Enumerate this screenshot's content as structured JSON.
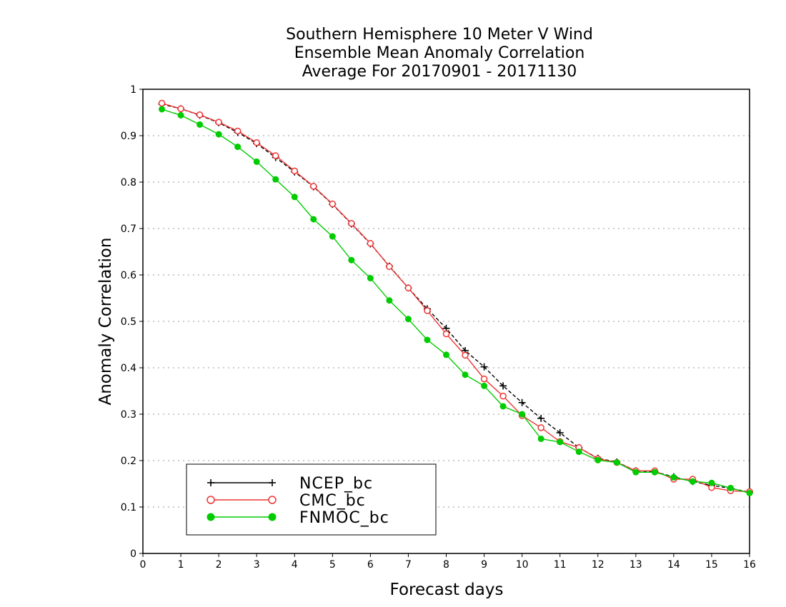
{
  "chart_data": {
    "type": "line",
    "title": [
      "Southern Hemisphere 10 Meter V Wind",
      "Ensemble Mean Anomaly Correlation",
      "Average For 20170901 - 20171130"
    ],
    "xlabel": "Forecast days",
    "ylabel": "Anomaly Correlation",
    "xlim": [
      0,
      16
    ],
    "ylim": [
      0,
      1
    ],
    "xticks": [
      "0",
      "1",
      "2",
      "3",
      "4",
      "5",
      "6",
      "7",
      "8",
      "9",
      "10",
      "11",
      "12",
      "13",
      "14",
      "15",
      "16"
    ],
    "yticks": [
      "0",
      "0.1",
      "0.2",
      "0.3",
      "0.4",
      "0.5",
      "0.6",
      "0.7",
      "0.8",
      "0.9",
      "1"
    ],
    "grid": "horizontal dotted",
    "legend_position": "bottom-left",
    "x": [
      0.5,
      1,
      1.5,
      2,
      2.5,
      3,
      3.5,
      4,
      4.5,
      5,
      5.5,
      6,
      6.5,
      7,
      7.5,
      8,
      8.5,
      9,
      9.5,
      10,
      10.5,
      11,
      11.5,
      12,
      12.5,
      13,
      13.5,
      14,
      14.5,
      15,
      15.5,
      16
    ],
    "series": [
      {
        "name": "NCEP_bc",
        "color": "#000000",
        "marker": "plus",
        "dashed": true,
        "values": [
          0.968,
          0.958,
          0.944,
          0.928,
          0.907,
          0.883,
          0.853,
          0.822,
          0.79,
          0.752,
          0.71,
          0.667,
          0.619,
          0.572,
          0.527,
          0.485,
          0.437,
          0.402,
          0.361,
          0.325,
          0.291,
          0.26,
          0.228,
          0.205,
          0.197,
          0.178,
          0.176,
          0.165,
          0.155,
          0.147,
          0.14,
          0.132
        ]
      },
      {
        "name": "CMC_bc",
        "color": "#ee3333",
        "marker": "open-circle",
        "dashed": false,
        "values": [
          0.97,
          0.958,
          0.945,
          0.929,
          0.91,
          0.885,
          0.857,
          0.824,
          0.791,
          0.753,
          0.711,
          0.668,
          0.618,
          0.572,
          0.523,
          0.473,
          0.427,
          0.376,
          0.339,
          0.297,
          0.271,
          0.241,
          0.228,
          0.204,
          0.196,
          0.178,
          0.178,
          0.16,
          0.16,
          0.142,
          0.135,
          0.133
        ]
      },
      {
        "name": "FNMOC_bc",
        "color": "#00cc00",
        "marker": "filled-circle",
        "dashed": false,
        "values": [
          0.957,
          0.944,
          0.924,
          0.903,
          0.876,
          0.844,
          0.806,
          0.768,
          0.72,
          0.683,
          0.632,
          0.593,
          0.545,
          0.505,
          0.46,
          0.428,
          0.385,
          0.361,
          0.317,
          0.3,
          0.247,
          0.24,
          0.219,
          0.201,
          0.196,
          0.175,
          0.175,
          0.164,
          0.155,
          0.152,
          0.141,
          0.13
        ]
      }
    ]
  }
}
